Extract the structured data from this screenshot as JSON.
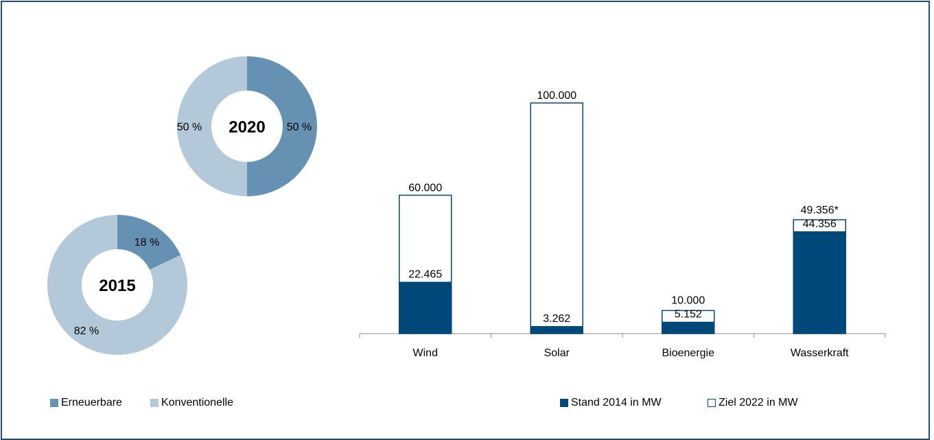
{
  "colors": {
    "erneuerbare": "#6591b3",
    "konventionelle": "#b3c8d8",
    "stand": "#00487a",
    "ziel_fill": "#ffffff",
    "ziel_border": "#00487a",
    "frame": "#1f4e79"
  },
  "chart_data": [
    {
      "type": "pie",
      "title": "2020",
      "slices": [
        {
          "name": "Erneuerbare",
          "value": 50,
          "label": "50 %"
        },
        {
          "name": "Konventionelle",
          "value": 50,
          "label": "50 %"
        }
      ]
    },
    {
      "type": "pie",
      "title": "2015",
      "slices": [
        {
          "name": "Erneuerbare",
          "value": 18,
          "label": "18 %"
        },
        {
          "name": "Konventionelle",
          "value": 82,
          "label": "82 %"
        }
      ]
    },
    {
      "type": "bar",
      "categories": [
        "Wind",
        "Solar",
        "Bioenergie",
        "Wasserkraft"
      ],
      "series": [
        {
          "name": "Stand 2014 in MW",
          "values": [
            22465,
            3262,
            5152,
            44356
          ],
          "labels": [
            "22.465",
            "3.262",
            "5.152",
            "44.356"
          ]
        },
        {
          "name": "Ziel 2022 in MW",
          "values": [
            60000,
            100000,
            10000,
            49356
          ],
          "labels": [
            "60.000",
            "100.000",
            "10.000",
            "49.356*"
          ]
        }
      ],
      "ylim": [
        0,
        100000
      ]
    }
  ],
  "legend_left": [
    {
      "label": "Erneuerbare"
    },
    {
      "label": "Konventionelle"
    }
  ],
  "legend_right": [
    {
      "label": "Stand 2014 in MW"
    },
    {
      "label": "Ziel 2022 in MW"
    }
  ]
}
